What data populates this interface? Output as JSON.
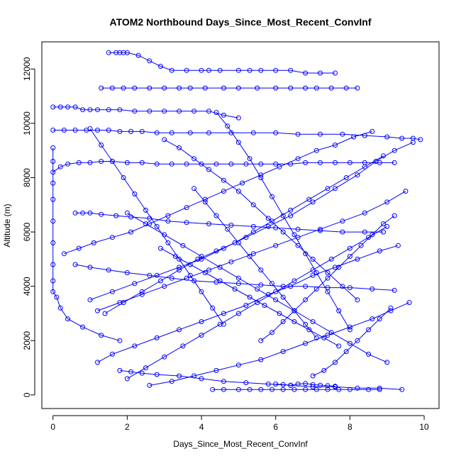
{
  "chart_data": {
    "type": "line",
    "title": "ATOM2 Northbound Days_Since_Most_Recent_ConvInf",
    "xlabel": "Days_Since_Most_Recent_ConvInf",
    "ylabel": "Altitude (m)",
    "xlim": [
      -0.3,
      10.4
    ],
    "ylim": [
      -500,
      13000
    ],
    "xticks": [
      0,
      2,
      4,
      6,
      8,
      10
    ],
    "yticks": [
      0,
      2000,
      4000,
      6000,
      8000,
      10000,
      12000
    ],
    "xtick_labels": [
      "0",
      "2",
      "4",
      "6",
      "8",
      "10"
    ],
    "ytick_labels": [
      "0",
      "2000",
      "4000",
      "6000",
      "8000",
      "10000",
      "12000"
    ],
    "marker": "open-circle",
    "line_style": "solid",
    "grid": false,
    "series": [
      {
        "color": "#0000ff",
        "x": [
          1.5,
          1.7,
          1.8,
          1.9,
          2.0,
          2.3,
          2.6,
          2.9,
          3.2,
          3.6,
          4.0,
          4.2,
          4.5,
          5.0,
          5.3,
          5.6,
          6.0,
          6.4,
          6.8,
          7.2,
          7.6
        ],
        "y": [
          12600,
          12600,
          12600,
          12600,
          12600,
          12500,
          12300,
          12100,
          11950,
          11950,
          11950,
          11950,
          11950,
          11950,
          11950,
          11950,
          11950,
          11950,
          11850,
          11850,
          11850
        ]
      },
      {
        "color": "#0000ff",
        "x": [
          1.3,
          1.6,
          1.9,
          2.2,
          2.6,
          3.0,
          3.4,
          3.7,
          4.1,
          4.6,
          5.0,
          5.5,
          6.0,
          6.4,
          6.8,
          7.1,
          7.5,
          7.9,
          8.2
        ],
        "y": [
          11300,
          11300,
          11300,
          11300,
          11300,
          11300,
          11300,
          11300,
          11300,
          11300,
          11300,
          11300,
          11300,
          11300,
          11300,
          11300,
          11300,
          11300,
          11300
        ]
      },
      {
        "color": "#0000ff",
        "x": [
          0.0,
          0.2,
          0.4,
          0.6,
          0.8,
          1.0,
          1.2,
          1.5,
          1.8,
          2.2,
          2.6,
          3.0,
          3.4,
          3.8,
          4.2,
          4.6,
          5.0
        ],
        "y": [
          10600,
          10600,
          10600,
          10600,
          10500,
          10500,
          10500,
          10500,
          10500,
          10450,
          10450,
          10450,
          10450,
          10450,
          10450,
          10300,
          10200
        ]
      },
      {
        "color": "#0000ff",
        "x": [
          0.0,
          0.3,
          0.6,
          0.9,
          1.2,
          1.5,
          1.8,
          2.1,
          2.4,
          2.8,
          3.2,
          3.7,
          4.2,
          4.8,
          5.4,
          6.0,
          6.6,
          7.2,
          7.8,
          8.4,
          9.0,
          9.4,
          9.7,
          9.9
        ],
        "y": [
          9750,
          9750,
          9750,
          9750,
          9750,
          9750,
          9700,
          9700,
          9700,
          9650,
          9650,
          9650,
          9650,
          9650,
          9650,
          9650,
          9600,
          9600,
          9600,
          9550,
          9500,
          9450,
          9450,
          9400
        ]
      },
      {
        "color": "#0000ff",
        "x": [
          0.0,
          0.2,
          0.4,
          0.7,
          1.0,
          1.3,
          1.6,
          2.0,
          2.4,
          2.8,
          3.2,
          3.6,
          4.0,
          4.4,
          4.8,
          5.2,
          5.6,
          6.0,
          6.4,
          6.8,
          7.2,
          7.6,
          8.0,
          8.4,
          8.8,
          9.2
        ],
        "y": [
          8200,
          8400,
          8500,
          8550,
          8550,
          8600,
          8600,
          8550,
          8550,
          8500,
          8500,
          8500,
          8500,
          8500,
          8500,
          8500,
          8500,
          8500,
          8500,
          8550,
          8550,
          8550,
          8550,
          8550,
          8550,
          8550
        ]
      },
      {
        "color": "#0000ff",
        "x": [
          0.6,
          0.8,
          1.0,
          1.3,
          1.7,
          2.1,
          2.6,
          3.1,
          3.6,
          4.2,
          4.8,
          5.4,
          6.0,
          6.6,
          7.2,
          7.8,
          8.4,
          8.9
        ],
        "y": [
          6700,
          6700,
          6700,
          6650,
          6600,
          6550,
          6500,
          6400,
          6350,
          6300,
          6250,
          6200,
          6150,
          6100,
          6050,
          6000,
          6000,
          6000
        ]
      },
      {
        "color": "#0000ff",
        "x": [
          0.0,
          0.0,
          0.0,
          0.0,
          0.0,
          0.0,
          0.0,
          0.0,
          0.0,
          0.1,
          0.2,
          0.4,
          0.8,
          1.3,
          1.8
        ],
        "y": [
          9100,
          8600,
          7800,
          7200,
          6400,
          5600,
          4800,
          4200,
          3800,
          3600,
          3200,
          2800,
          2500,
          2200,
          2000
        ]
      },
      {
        "color": "#0000ff",
        "x": [
          0.6,
          1.0,
          1.5,
          2.0,
          2.6,
          3.2,
          3.8,
          4.4,
          5.0,
          5.6,
          6.2,
          6.8,
          7.4,
          8.0,
          8.6,
          9.2
        ],
        "y": [
          4800,
          4700,
          4600,
          4500,
          4400,
          4300,
          4200,
          4150,
          4100,
          4050,
          4000,
          4000,
          3950,
          3950,
          3900,
          3850
        ]
      },
      {
        "color": "#0000ff",
        "x": [
          1.8,
          2.1,
          2.4,
          2.8,
          3.4,
          4.0,
          4.6,
          5.2,
          5.8,
          6.4,
          7.0,
          7.6,
          8.2,
          8.8,
          9.4
        ],
        "y": [
          900,
          850,
          800,
          750,
          700,
          600,
          500,
          450,
          400,
          350,
          300,
          300,
          250,
          250,
          200
        ]
      },
      {
        "color": "#0000ff",
        "x": [
          4.3,
          4.6,
          5.0,
          5.3,
          5.6,
          5.9,
          6.2,
          6.5,
          6.8,
          7.1,
          7.4,
          7.7,
          8.0,
          8.5,
          8.8
        ],
        "y": [
          200,
          200,
          200,
          200,
          200,
          200,
          200,
          200,
          200,
          200,
          200,
          200,
          200,
          200,
          200
        ]
      },
      {
        "color": "#0000ff",
        "x": [
          9.7,
          9.2,
          8.7,
          8.2,
          7.6,
          7.0,
          6.4,
          5.8,
          5.2,
          4.6,
          4.0,
          3.4,
          2.8,
          2.2,
          1.6,
          1.0
        ],
        "y": [
          9300,
          9000,
          8600,
          8100,
          7600,
          7100,
          6600,
          6200,
          5800,
          5400,
          5000,
          4700,
          4400,
          4100,
          3800,
          3500
        ]
      },
      {
        "color": "#0000ff",
        "x": [
          9.5,
          9.0,
          8.4,
          7.8,
          7.2,
          6.6,
          6.0,
          5.4,
          4.8,
          4.2,
          3.6,
          3.0,
          2.4,
          1.8,
          1.2
        ],
        "y": [
          7500,
          7100,
          6700,
          6400,
          6100,
          5800,
          5500,
          5200,
          4900,
          4600,
          4300,
          4000,
          3700,
          3400,
          3100
        ]
      },
      {
        "color": "#0000ff",
        "x": [
          9.3,
          8.8,
          8.2,
          7.6,
          7.0,
          6.4,
          5.8,
          5.2,
          4.6,
          4.0,
          3.4,
          2.8,
          2.2,
          1.6,
          1.2
        ],
        "y": [
          5500,
          5300,
          5000,
          4700,
          4400,
          4000,
          3700,
          3300,
          3000,
          2700,
          2400,
          2100,
          1800,
          1500,
          1200
        ]
      },
      {
        "color": "#0000ff",
        "x": [
          9.6,
          9.1,
          8.6,
          8.0,
          7.4,
          6.8,
          6.2,
          5.6,
          5.0,
          4.4,
          3.8,
          3.2,
          2.6
        ],
        "y": [
          3400,
          3100,
          2800,
          2500,
          2200,
          1900,
          1600,
          1300,
          1100,
          900,
          700,
          500,
          350
        ]
      },
      {
        "color": "#0000ff",
        "x": [
          9.0,
          8.5,
          8.0,
          7.5,
          7.0,
          6.5,
          6.0,
          5.5,
          5.0,
          4.5,
          4.0,
          3.5,
          3.0,
          2.5,
          2.0
        ],
        "y": [
          1200,
          1500,
          1900,
          2300,
          2700,
          3100,
          3500,
          3900,
          4300,
          4700,
          5100,
          5500,
          5900,
          6300,
          6700
        ]
      },
      {
        "color": "#0000ff",
        "x": [
          0.3,
          0.7,
          1.1,
          1.6,
          2.1,
          2.6,
          3.1,
          3.6,
          4.1,
          4.6,
          5.1,
          5.6,
          6.1,
          6.6,
          7.1,
          7.6,
          8.1,
          8.6
        ],
        "y": [
          5200,
          5400,
          5600,
          5800,
          6000,
          6300,
          6600,
          6900,
          7200,
          7500,
          7800,
          8100,
          8400,
          8700,
          9000,
          9200,
          9500,
          9700
        ]
      },
      {
        "color": "#0000ff",
        "x": [
          1.4,
          1.9,
          2.4,
          2.9,
          3.4,
          3.9,
          4.4,
          4.9,
          5.4,
          5.9,
          6.4,
          6.9,
          7.4,
          7.9,
          8.4,
          8.9
        ],
        "y": [
          3000,
          3400,
          3800,
          4200,
          4600,
          5000,
          5300,
          5600,
          6000,
          6400,
          6800,
          7200,
          7600,
          8000,
          8400,
          8800
        ]
      },
      {
        "color": "#0000ff",
        "x": [
          2.0,
          2.5,
          3.0,
          3.5,
          4.0,
          4.5,
          5.0,
          5.5,
          6.0,
          6.5,
          7.0,
          7.5,
          8.0,
          8.5,
          9.0
        ],
        "y": [
          600,
          1000,
          1400,
          1800,
          2200,
          2600,
          3000,
          3400,
          3800,
          4200,
          4600,
          5000,
          5400,
          5800,
          6200
        ]
      },
      {
        "color": "#0000ff",
        "x": [
          3.0,
          3.4,
          3.8,
          4.2,
          4.6,
          5.0,
          5.4,
          5.8,
          6.2,
          6.6,
          7.0,
          7.4,
          7.8,
          8.2
        ],
        "y": [
          9400,
          9100,
          8700,
          8300,
          7900,
          7500,
          7000,
          6500,
          6000,
          5500,
          5000,
          4500,
          4000,
          3500
        ]
      },
      {
        "color": "#0000ff",
        "x": [
          4.4,
          4.7,
          5.0,
          5.3,
          5.6,
          5.9,
          6.2,
          6.5,
          6.8,
          7.1,
          7.4,
          7.7,
          8.0
        ],
        "y": [
          10400,
          9900,
          9300,
          8700,
          8000,
          7300,
          6600,
          5900,
          5200,
          4500,
          3800,
          3100,
          2400
        ]
      },
      {
        "color": "#0000ff",
        "x": [
          1.0,
          1.3,
          1.6,
          1.9,
          2.2,
          2.5,
          2.8,
          3.1,
          3.4,
          3.7,
          4.0,
          4.3,
          4.6
        ],
        "y": [
          9800,
          9200,
          8600,
          8000,
          7400,
          6800,
          6200,
          5600,
          5000,
          4400,
          3800,
          3200,
          2600
        ]
      },
      {
        "color": "#0000ff",
        "x": [
          5.6,
          5.9,
          6.2,
          6.5,
          6.8,
          7.1,
          7.4,
          7.7,
          8.0,
          8.3,
          8.6,
          8.9,
          9.2
        ],
        "y": [
          2000,
          2300,
          2700,
          3100,
          3500,
          3900,
          4300,
          4700,
          5100,
          5500,
          5900,
          6300,
          6600
        ]
      },
      {
        "color": "#0000ff",
        "x": [
          6.0,
          6.2,
          6.4,
          6.6,
          6.8,
          7.0,
          7.2,
          7.4,
          7.6
        ],
        "y": [
          400,
          380,
          360,
          400,
          420,
          380,
          360,
          340,
          320
        ]
      },
      {
        "color": "#0000ff",
        "x": [
          2.9,
          3.3,
          3.7,
          4.1,
          4.5,
          4.9,
          5.3,
          5.7,
          6.1,
          6.5,
          6.9,
          7.3,
          7.7
        ],
        "y": [
          5400,
          5100,
          4800,
          4500,
          4200,
          3900,
          3600,
          3300,
          3000,
          2700,
          2400,
          2100,
          1800
        ]
      },
      {
        "color": "#0000ff",
        "x": [
          3.8,
          4.1,
          4.4,
          4.7,
          5.0,
          5.3,
          5.6,
          5.9,
          6.2,
          6.5,
          6.8,
          7.1
        ],
        "y": [
          7600,
          7100,
          6600,
          6100,
          5600,
          5100,
          4600,
          4100,
          3600,
          3100,
          2600,
          2100
        ]
      },
      {
        "color": "#0000ff",
        "x": [
          7.0,
          7.3,
          7.6,
          7.9,
          8.2,
          8.5,
          8.8,
          9.1
        ],
        "y": [
          700,
          900,
          1200,
          1600,
          2000,
          2400,
          2800,
          3200
        ]
      }
    ]
  }
}
